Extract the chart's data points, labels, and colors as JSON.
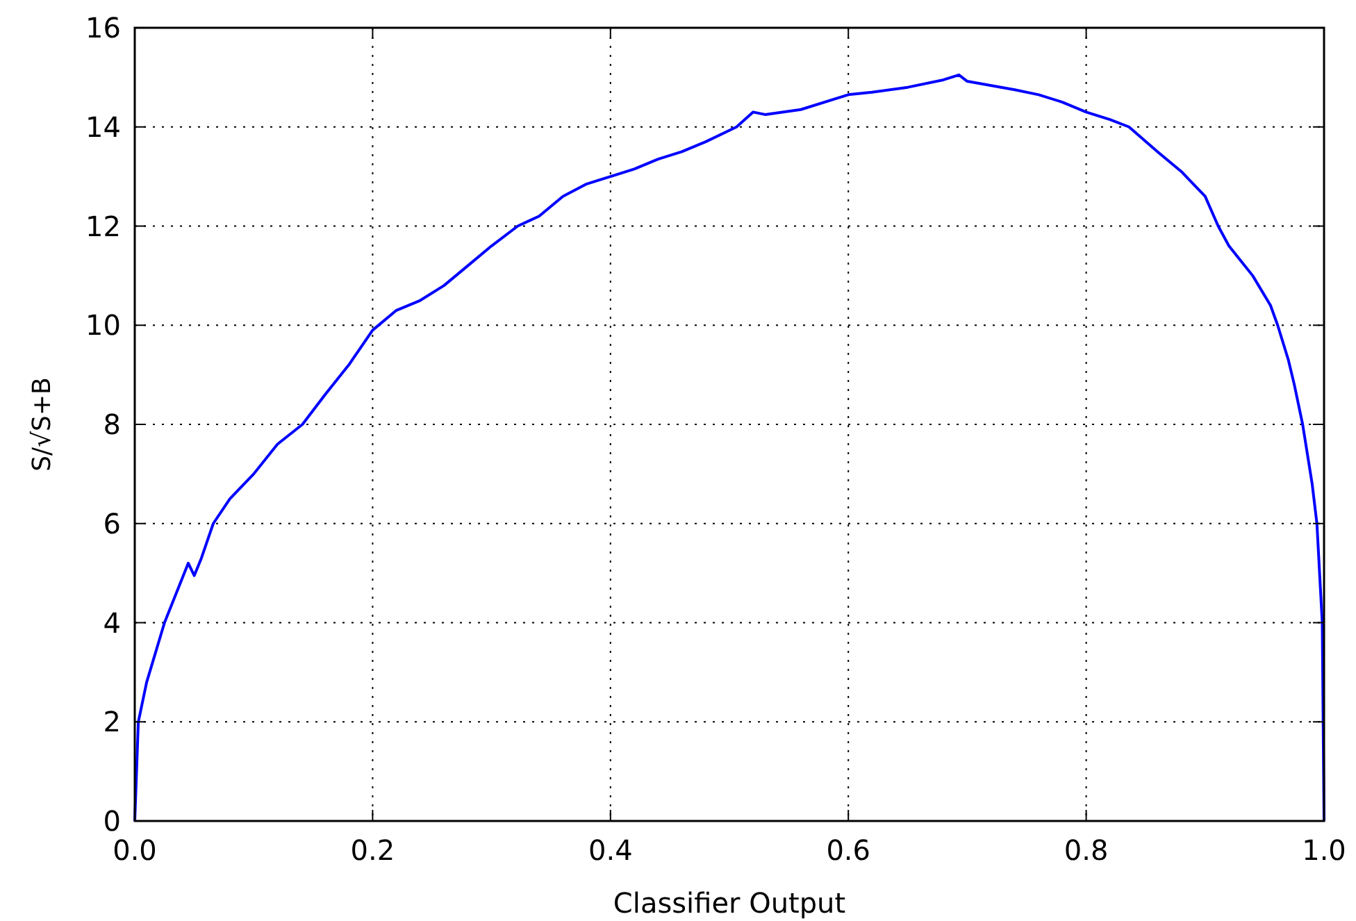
{
  "chart_data": {
    "type": "line",
    "xlabel": "Classifier Output",
    "ylabel": "S/√S+B",
    "xlim": [
      0,
      1
    ],
    "ylim": [
      0,
      16
    ],
    "xticks": [
      {
        "value": 0,
        "label": "0.0"
      },
      {
        "value": 0.2,
        "label": "0.2"
      },
      {
        "value": 0.4,
        "label": "0.4"
      },
      {
        "value": 0.6,
        "label": "0.6"
      },
      {
        "value": 0.8,
        "label": "0.8"
      },
      {
        "value": 1,
        "label": "1.0"
      }
    ],
    "yticks": [
      0,
      2,
      4,
      6,
      8,
      10,
      12,
      14,
      16
    ],
    "grid": true,
    "series": [
      {
        "color": "#0000ff",
        "x": [
          0,
          0.003,
          0.01,
          0.015,
          0.025,
          0.04,
          0.045,
          0.05,
          0.056,
          0.066,
          0.08,
          0.1,
          0.12,
          0.141,
          0.16,
          0.18,
          0.2,
          0.22,
          0.24,
          0.26,
          0.28,
          0.3,
          0.322,
          0.34,
          0.36,
          0.38,
          0.4,
          0.42,
          0.44,
          0.46,
          0.48,
          0.506,
          0.52,
          0.53,
          0.56,
          0.6,
          0.62,
          0.65,
          0.68,
          0.693,
          0.7,
          0.74,
          0.76,
          0.78,
          0.8,
          0.82,
          0.836,
          0.86,
          0.88,
          0.9,
          0.911,
          0.92,
          0.94,
          0.955,
          0.961,
          0.97,
          0.975,
          0.982,
          0.99,
          0.994,
          0.9985,
          1.0
        ],
        "values": [
          0,
          2.0,
          2.8,
          3.2,
          4.0,
          4.9,
          5.2,
          4.95,
          5.3,
          6.0,
          6.5,
          7.0,
          7.6,
          8.0,
          8.6,
          9.2,
          9.9,
          10.3,
          10.5,
          10.8,
          11.2,
          11.6,
          12.0,
          12.2,
          12.6,
          12.85,
          13.0,
          13.15,
          13.35,
          13.5,
          13.7,
          14.0,
          14.3,
          14.25,
          14.35,
          14.65,
          14.7,
          14.8,
          14.95,
          15.05,
          14.92,
          14.75,
          14.65,
          14.5,
          14.3,
          14.15,
          14.0,
          13.5,
          13.1,
          12.6,
          12.0,
          11.6,
          11.0,
          10.4,
          10.0,
          9.3,
          8.8,
          8.0,
          6.8,
          6.0,
          4.0,
          0
        ]
      }
    ]
  }
}
